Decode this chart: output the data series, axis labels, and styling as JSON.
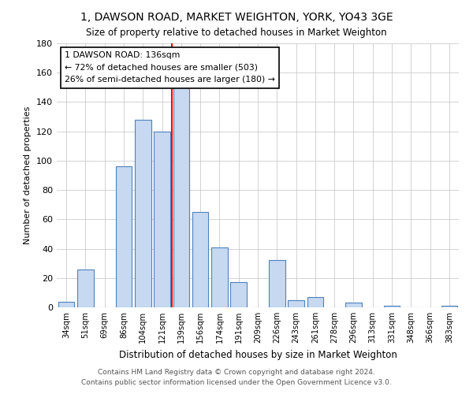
{
  "title": "1, DAWSON ROAD, MARKET WEIGHTON, YORK, YO43 3GE",
  "subtitle": "Size of property relative to detached houses in Market Weighton",
  "xlabel": "Distribution of detached houses by size in Market Weighton",
  "ylabel": "Number of detached properties",
  "bar_labels": [
    "34sqm",
    "51sqm",
    "69sqm",
    "86sqm",
    "104sqm",
    "121sqm",
    "139sqm",
    "156sqm",
    "174sqm",
    "191sqm",
    "209sqm",
    "226sqm",
    "243sqm",
    "261sqm",
    "278sqm",
    "296sqm",
    "313sqm",
    "331sqm",
    "348sqm",
    "366sqm",
    "383sqm"
  ],
  "bar_values": [
    4,
    26,
    0,
    96,
    128,
    120,
    150,
    65,
    41,
    17,
    0,
    32,
    5,
    7,
    0,
    3,
    0,
    1,
    0,
    0,
    1
  ],
  "bar_color": "#c6d9f1",
  "bar_edge_color": "#4f81bd",
  "ylim": [
    0,
    180
  ],
  "yticks": [
    0,
    20,
    40,
    60,
    80,
    100,
    120,
    140,
    160,
    180
  ],
  "annotation_line_label": "1 DAWSON ROAD: 136sqm",
  "annotation_line_color": "red",
  "annotation_text1": "← 72% of detached houses are smaller (503)",
  "annotation_text2": "26% of semi-detached houses are larger (180) →",
  "footer_line1": "Contains HM Land Registry data © Crown copyright and database right 2024.",
  "footer_line2": "Contains public sector information licensed under the Open Government Licence v3.0.",
  "background_color": "#ffffff",
  "grid_color": "#cccccc"
}
